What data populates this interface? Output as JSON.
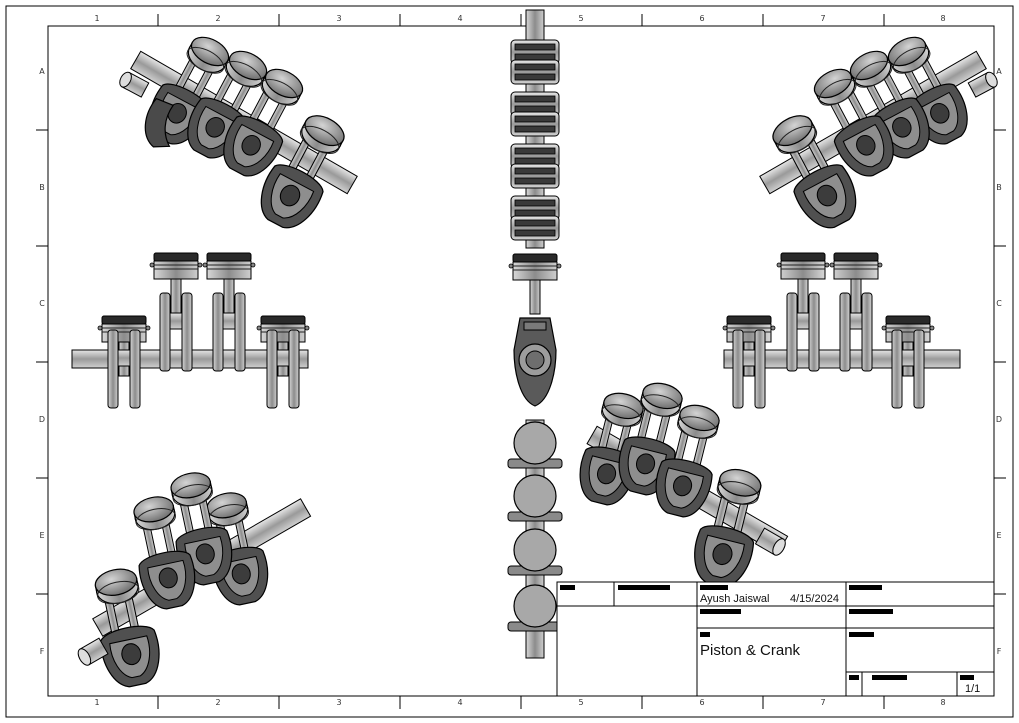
{
  "sheet": {
    "zone_columns": [
      "1",
      "2",
      "3",
      "4",
      "5",
      "6",
      "7",
      "8"
    ],
    "zone_rows": [
      "A",
      "B",
      "C",
      "D",
      "E",
      "F"
    ]
  },
  "title_block": {
    "author": "Ayush Jaiswal",
    "date": "4/15/2024",
    "title": "Piston & Crank",
    "sheet_number": "1/1"
  },
  "colors": {
    "part_dark": "#4a4a4a",
    "part_mid": "#8a8a8a",
    "part_light": "#b8b8b8",
    "outline": "#111111",
    "border": "#000000"
  }
}
